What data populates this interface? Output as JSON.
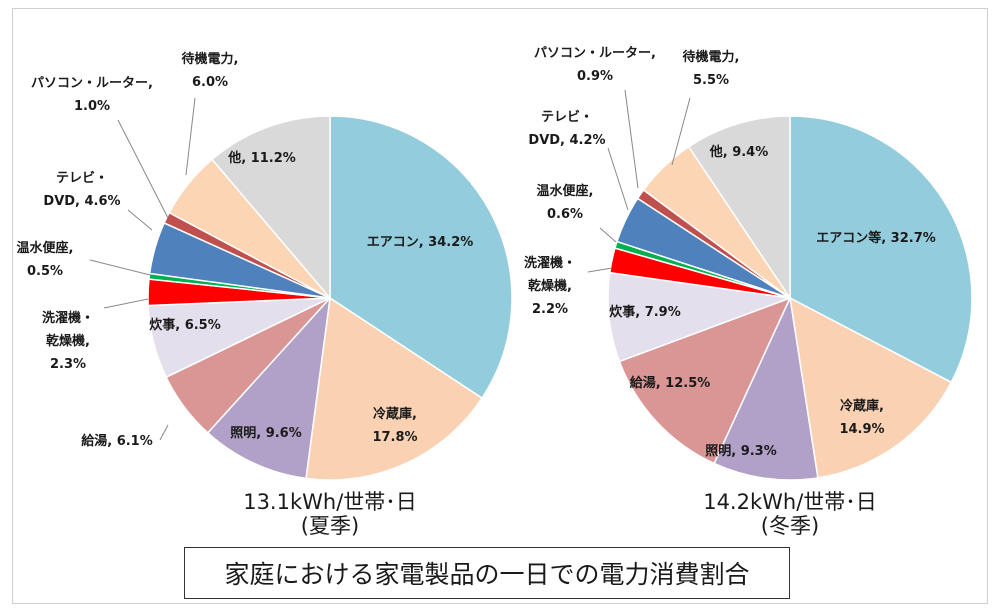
{
  "footer_title": "家庭における家電製品の一日での電力消費割合",
  "chart_data": [
    {
      "type": "pie",
      "caption_main": "13.1kWh/世帯･日",
      "caption_sub": "(夏季)",
      "slices": [
        {
          "label": [
            "エアコン, 34.2%"
          ],
          "value": 34.2,
          "color": "#93CDDD"
        },
        {
          "label": [
            "冷蔵庫,",
            "17.8%"
          ],
          "value": 17.8,
          "color": "#FAD2B3"
        },
        {
          "label": [
            "照明, 9.6%"
          ],
          "value": 9.6,
          "color": "#B1A0C7"
        },
        {
          "label": [
            "給湯, 6.1%"
          ],
          "value": 6.1,
          "color": "#DA9694"
        },
        {
          "label": [
            "炊事, 6.5%"
          ],
          "value": 6.5,
          "color": "#E4DFEC"
        },
        {
          "label": [
            "洗濯機・",
            "乾燥機,",
            "2.3%"
          ],
          "value": 2.3,
          "color": "#FF0000"
        },
        {
          "label": [
            "温水便座,",
            "0.5%"
          ],
          "value": 0.5,
          "color": "#00B050"
        },
        {
          "label": [
            "テレビ・",
            "DVD, 4.6%"
          ],
          "value": 4.6,
          "color": "#4F81BD"
        },
        {
          "label": [
            "パソコン・ルーター,",
            "1.0%"
          ],
          "value": 1.0,
          "color": "#C0504D"
        },
        {
          "label": [
            "待機電力,",
            "6.0%"
          ],
          "value": 6.0,
          "color": "#FCD5B4"
        },
        {
          "label": [
            "他, 11.2%"
          ],
          "value": 11.2,
          "color": "#D9D9D9"
        }
      ]
    },
    {
      "type": "pie",
      "caption_main": "14.2kWh/世帯･日",
      "caption_sub": "(冬季)",
      "slices": [
        {
          "label": [
            "エアコン等, 32.7%"
          ],
          "value": 32.7,
          "color": "#93CDDD"
        },
        {
          "label": [
            "冷蔵庫,",
            "14.9%"
          ],
          "value": 14.9,
          "color": "#FAD2B3"
        },
        {
          "label": [
            "照明, 9.3%"
          ],
          "value": 9.3,
          "color": "#B1A0C7"
        },
        {
          "label": [
            "給湯, 12.5%"
          ],
          "value": 12.5,
          "color": "#DA9694"
        },
        {
          "label": [
            "炊事, 7.9%"
          ],
          "value": 7.9,
          "color": "#E4DFEC"
        },
        {
          "label": [
            "洗濯機・",
            "乾燥機,",
            "2.2%"
          ],
          "value": 2.2,
          "color": "#FF0000"
        },
        {
          "label": [
            "温水便座,",
            "0.6%"
          ],
          "value": 0.6,
          "color": "#00B050"
        },
        {
          "label": [
            "テレビ・",
            "DVD, 4.2%"
          ],
          "value": 4.2,
          "color": "#4F81BD"
        },
        {
          "label": [
            "パソコン・ルーター,",
            "0.9%"
          ],
          "value": 0.9,
          "color": "#C0504D"
        },
        {
          "label": [
            "待機電力,",
            "5.5%"
          ],
          "value": 5.5,
          "color": "#FCD5B4"
        },
        {
          "label": [
            "他, 9.4%"
          ],
          "value": 9.4,
          "color": "#D9D9D9"
        }
      ]
    }
  ]
}
